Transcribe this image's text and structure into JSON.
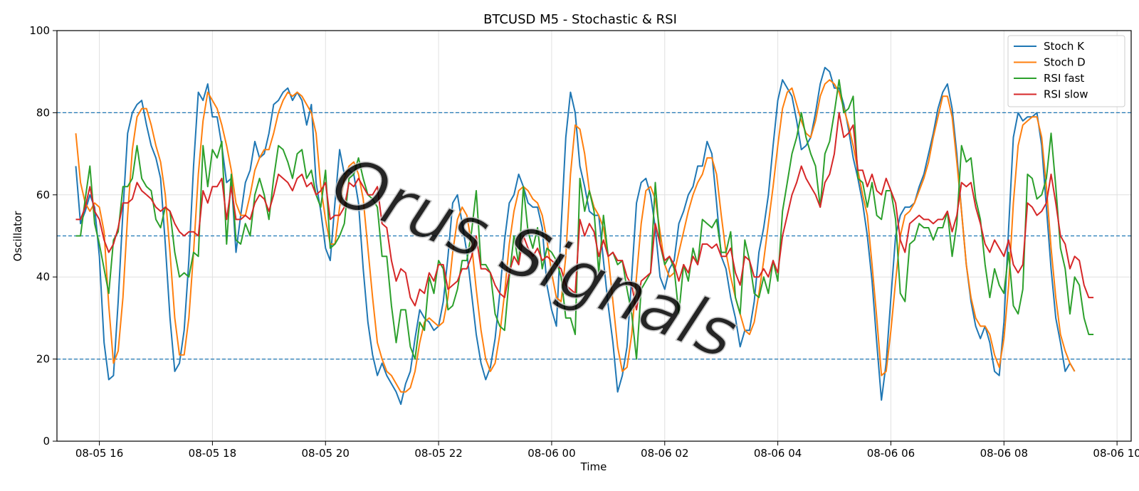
{
  "chart_data": {
    "type": "line",
    "title": "BTCUSD M5 - Stochastic & RSI",
    "xlabel": "Time",
    "ylabel": "Oscillator",
    "ylim": [
      0,
      100
    ],
    "xlim": [
      "2024-08-05 15:15",
      "2024-08-06 10:15"
    ],
    "yticks": [
      0,
      20,
      40,
      60,
      80,
      100
    ],
    "xticks": [
      "08-05 16",
      "08-05 18",
      "08-05 20",
      "08-05 22",
      "08-06 00",
      "08-06 02",
      "08-06 04",
      "08-06 06",
      "08-06 08",
      "08-06 10"
    ],
    "grid": true,
    "legend_position": "top-right",
    "hlines": [
      {
        "y": 80,
        "style": "dashed",
        "color": "#1f77b4"
      },
      {
        "y": 50,
        "style": "dashed",
        "color": "#1f77b4"
      },
      {
        "y": 20,
        "style": "dashed",
        "color": "#1f77b4"
      }
    ],
    "x_start": "2024-08-05 15:35",
    "x_step_minutes": 5,
    "series": [
      {
        "name": "Stoch K",
        "color": "#1f77b4",
        "values": [
          67,
          53,
          56,
          60,
          57,
          45,
          24,
          15,
          16,
          34,
          56,
          75,
          80,
          82,
          83,
          77,
          72,
          69,
          64,
          48,
          30,
          17,
          19,
          27,
          44,
          67,
          85,
          83,
          87,
          79,
          79,
          72,
          63,
          64,
          46,
          55,
          63,
          66,
          73,
          69,
          70,
          75,
          82,
          83,
          85,
          86,
          83,
          85,
          83,
          77,
          82,
          63,
          56,
          47,
          44,
          58,
          71,
          65,
          66,
          65,
          58,
          42,
          29,
          21,
          16,
          19,
          16,
          14,
          12,
          9,
          14,
          17,
          25,
          32,
          30,
          29,
          27,
          28,
          34,
          45,
          58,
          60,
          53,
          46,
          36,
          26,
          19,
          15,
          18,
          25,
          36,
          49,
          58,
          60,
          65,
          62,
          58,
          57,
          57,
          52,
          38,
          32,
          28,
          52,
          74,
          85,
          80,
          67,
          62,
          56,
          55,
          55,
          44,
          33,
          24,
          12,
          16,
          23,
          40,
          58,
          63,
          64,
          60,
          52,
          40,
          37,
          42,
          44,
          53,
          56,
          60,
          62,
          67,
          67,
          73,
          70,
          58,
          45,
          42,
          35,
          30,
          23,
          27,
          27,
          34,
          46,
          52,
          60,
          72,
          83,
          88,
          86,
          84,
          78,
          71,
          72,
          74,
          80,
          87,
          91,
          90,
          86,
          86,
          82,
          76,
          69,
          64,
          58,
          50,
          39,
          24,
          10,
          19,
          35,
          50,
          55,
          57,
          57,
          58,
          62,
          65,
          70,
          75,
          81,
          85,
          87,
          81,
          70,
          56,
          43,
          34,
          28,
          25,
          28,
          24,
          17,
          16,
          29,
          52,
          74,
          80,
          78,
          79,
          79,
          80,
          72,
          57,
          42,
          30,
          24,
          17,
          19,
          17
        ]
      },
      {
        "name": "Stoch D",
        "color": "#ff7f0e",
        "values": [
          75,
          63,
          58,
          56,
          58,
          57,
          51,
          33,
          19,
          22,
          35,
          55,
          71,
          79,
          81,
          81,
          77,
          72,
          68,
          60,
          46,
          30,
          21,
          21,
          30,
          46,
          65,
          78,
          85,
          83,
          81,
          77,
          72,
          66,
          58,
          55,
          55,
          60,
          66,
          69,
          71,
          71,
          75,
          80,
          83,
          85,
          84,
          85,
          84,
          82,
          80,
          75,
          62,
          54,
          48,
          48,
          57,
          64,
          67,
          68,
          65,
          59,
          47,
          35,
          24,
          20,
          17,
          16,
          14,
          12,
          12,
          13,
          17,
          24,
          29,
          30,
          29,
          28,
          29,
          35,
          46,
          54,
          57,
          55,
          48,
          37,
          27,
          20,
          17,
          19,
          26,
          36,
          48,
          56,
          61,
          62,
          61,
          59,
          58,
          55,
          49,
          41,
          35,
          34,
          45,
          65,
          77,
          76,
          70,
          61,
          57,
          55,
          52,
          45,
          34,
          23,
          17,
          18,
          26,
          40,
          53,
          61,
          62,
          59,
          51,
          43,
          40,
          41,
          46,
          51,
          56,
          60,
          63,
          65,
          69,
          69,
          65,
          55,
          46,
          40,
          35,
          31,
          27,
          26,
          29,
          36,
          44,
          53,
          62,
          72,
          81,
          85,
          86,
          82,
          78,
          75,
          74,
          78,
          84,
          87,
          88,
          87,
          85,
          81,
          77,
          72,
          66,
          60,
          55,
          43,
          30,
          16,
          17,
          27,
          39,
          50,
          55,
          56,
          58,
          61,
          64,
          68,
          74,
          79,
          84,
          84,
          79,
          68,
          56,
          43,
          35,
          30,
          28,
          28,
          26,
          21,
          18,
          25,
          38,
          58,
          72,
          77,
          78,
          79,
          79,
          74,
          62,
          47,
          35,
          26,
          22,
          19,
          17
        ]
      },
      {
        "name": "RSI fast",
        "color": "#2ca02c",
        "values": [
          50,
          50,
          59,
          67,
          53,
          48,
          42,
          36,
          49,
          51,
          62,
          62,
          64,
          72,
          64,
          62,
          61,
          54,
          52,
          57,
          56,
          46,
          40,
          41,
          40,
          46,
          45,
          72,
          62,
          71,
          69,
          73,
          48,
          65,
          49,
          48,
          53,
          50,
          60,
          64,
          60,
          54,
          64,
          72,
          71,
          68,
          64,
          70,
          71,
          64,
          66,
          60,
          57,
          66,
          47,
          48,
          50,
          53,
          64,
          65,
          69,
          64,
          60,
          59,
          57,
          45,
          45,
          33,
          24,
          32,
          32,
          23,
          20,
          29,
          27,
          40,
          36,
          44,
          42,
          32,
          33,
          37,
          44,
          44,
          51,
          61,
          43,
          43,
          41,
          31,
          28,
          27,
          40,
          50,
          43,
          62,
          51,
          47,
          52,
          42,
          47,
          46,
          44,
          40,
          30,
          30,
          26,
          64,
          56,
          61,
          56,
          41,
          55,
          45,
          46,
          43,
          44,
          37,
          31,
          20,
          37,
          39,
          41,
          63,
          48,
          43,
          45,
          42,
          31,
          43,
          39,
          47,
          43,
          54,
          53,
          52,
          54,
          46,
          46,
          51,
          35,
          31,
          49,
          44,
          36,
          35,
          40,
          36,
          44,
          39,
          56,
          63,
          70,
          74,
          80,
          74,
          70,
          67,
          57,
          70,
          73,
          80,
          88,
          80,
          81,
          84,
          64,
          63,
          57,
          63,
          55,
          54,
          61,
          61,
          54,
          36,
          34,
          48,
          49,
          53,
          52,
          52,
          49,
          52,
          52,
          56,
          45,
          53,
          72,
          68,
          69,
          59,
          54,
          43,
          35,
          42,
          38,
          36,
          46,
          33,
          31,
          37,
          65,
          64,
          59,
          60,
          64,
          75,
          62,
          47,
          42,
          31,
          40,
          38,
          30,
          26,
          26
        ]
      },
      {
        "name": "RSI slow",
        "color": "#d62728",
        "values": [
          54,
          54,
          57,
          62,
          56,
          54,
          49,
          46,
          48,
          52,
          58,
          58,
          59,
          63,
          61,
          60,
          59,
          57,
          56,
          57,
          56,
          53,
          51,
          50,
          51,
          51,
          50,
          61,
          58,
          62,
          62,
          64,
          54,
          62,
          54,
          54,
          55,
          54,
          58,
          60,
          59,
          56,
          60,
          65,
          64,
          63,
          61,
          64,
          65,
          62,
          63,
          60,
          61,
          63,
          54,
          55,
          55,
          57,
          63,
          62,
          64,
          62,
          60,
          60,
          62,
          53,
          52,
          44,
          39,
          42,
          41,
          35,
          33,
          37,
          36,
          41,
          39,
          43,
          43,
          37,
          38,
          39,
          42,
          42,
          45,
          50,
          42,
          42,
          41,
          38,
          36,
          35,
          41,
          45,
          43,
          50,
          47,
          45,
          47,
          44,
          45,
          44,
          43,
          42,
          38,
          37,
          36,
          54,
          50,
          53,
          51,
          45,
          49,
          45,
          46,
          44,
          44,
          40,
          38,
          32,
          39,
          40,
          41,
          53,
          48,
          44,
          45,
          43,
          39,
          43,
          41,
          45,
          43,
          48,
          48,
          47,
          48,
          45,
          45,
          47,
          41,
          38,
          45,
          44,
          40,
          40,
          42,
          40,
          44,
          41,
          50,
          55,
          60,
          63,
          67,
          64,
          62,
          60,
          57,
          63,
          65,
          70,
          80,
          74,
          75,
          77,
          66,
          66,
          62,
          65,
          61,
          60,
          64,
          61,
          58,
          49,
          46,
          53,
          54,
          55,
          54,
          54,
          53,
          54,
          54,
          56,
          51,
          55,
          63,
          62,
          63,
          57,
          53,
          48,
          46,
          49,
          47,
          45,
          49,
          43,
          41,
          43,
          58,
          57,
          55,
          56,
          58,
          65,
          58,
          50,
          48,
          42,
          45,
          44,
          38,
          35,
          35
        ]
      }
    ]
  },
  "watermark": "Orus Signals"
}
